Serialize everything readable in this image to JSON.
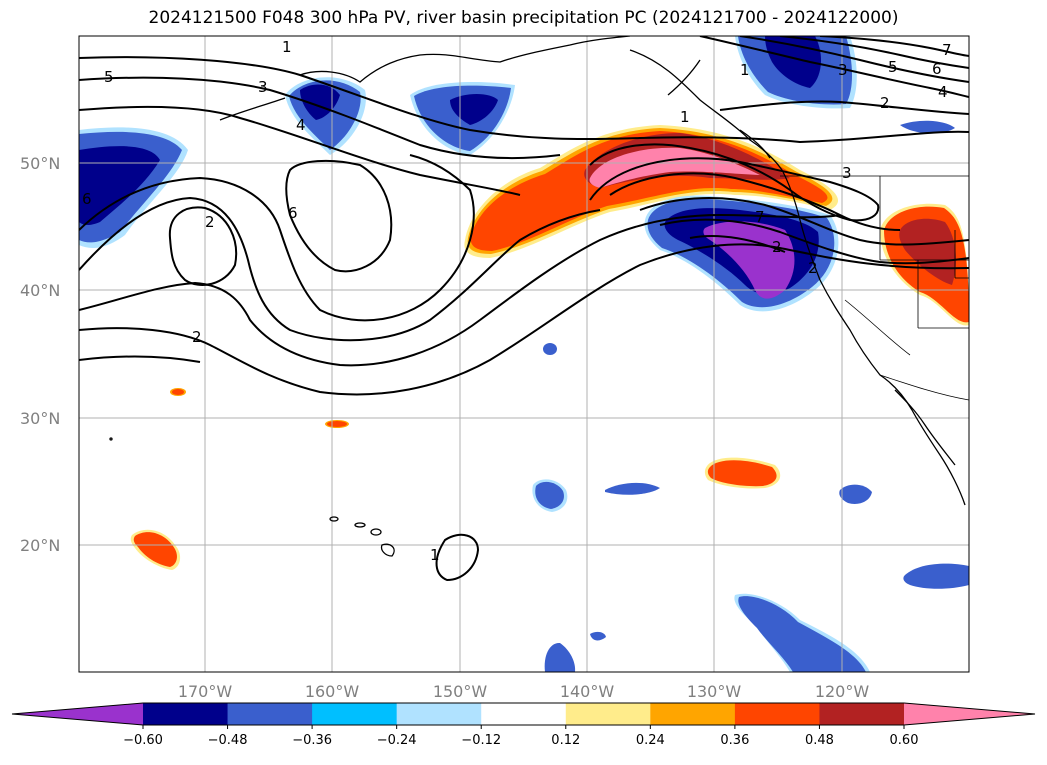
{
  "title": "2024121500 F048 300 hPa PV, river basin precipitation PC (2024121700 - 2024122000)",
  "lat_labels": [
    "50°N",
    "40°N",
    "30°N",
    "20°N"
  ],
  "lon_labels": [
    "170°W",
    "160°W",
    "150°W",
    "140°W",
    "130°W",
    "120°W"
  ],
  "colorbar": {
    "ticks": [
      "−0.60",
      "−0.48",
      "−0.36",
      "−0.24",
      "−0.12",
      "0.12",
      "0.24",
      "0.36",
      "0.48",
      "0.60"
    ],
    "colors": [
      "#9a32cd",
      "#00008b",
      "#3a5fcd",
      "#00bfff",
      "#b0e2ff",
      "#ffffff",
      "#ffec8b",
      "#ffa500",
      "#ff4500",
      "#b22222",
      "#ff82ab"
    ]
  },
  "contour_labels": {
    "c1": "1",
    "c2": "2",
    "c3": "3",
    "c4": "4",
    "c5": "5",
    "c6": "6",
    "c7": "7",
    "c8": "2",
    "c9": "6",
    "c10": "2",
    "c11": "1",
    "c12": "1",
    "c13": "3",
    "c14": "5",
    "c15": "6",
    "c16": "4",
    "c17": "2",
    "c18": "7",
    "c19": "1",
    "c20": "3",
    "c21": "2"
  },
  "map_extent": {
    "lon_min": -180,
    "lon_max": -110,
    "lat_min": 10,
    "lat_max": 60
  },
  "colors": {
    "grid": "#b0b0b0",
    "frame": "#000000",
    "contour": "#000000",
    "coast": "#000000"
  }
}
